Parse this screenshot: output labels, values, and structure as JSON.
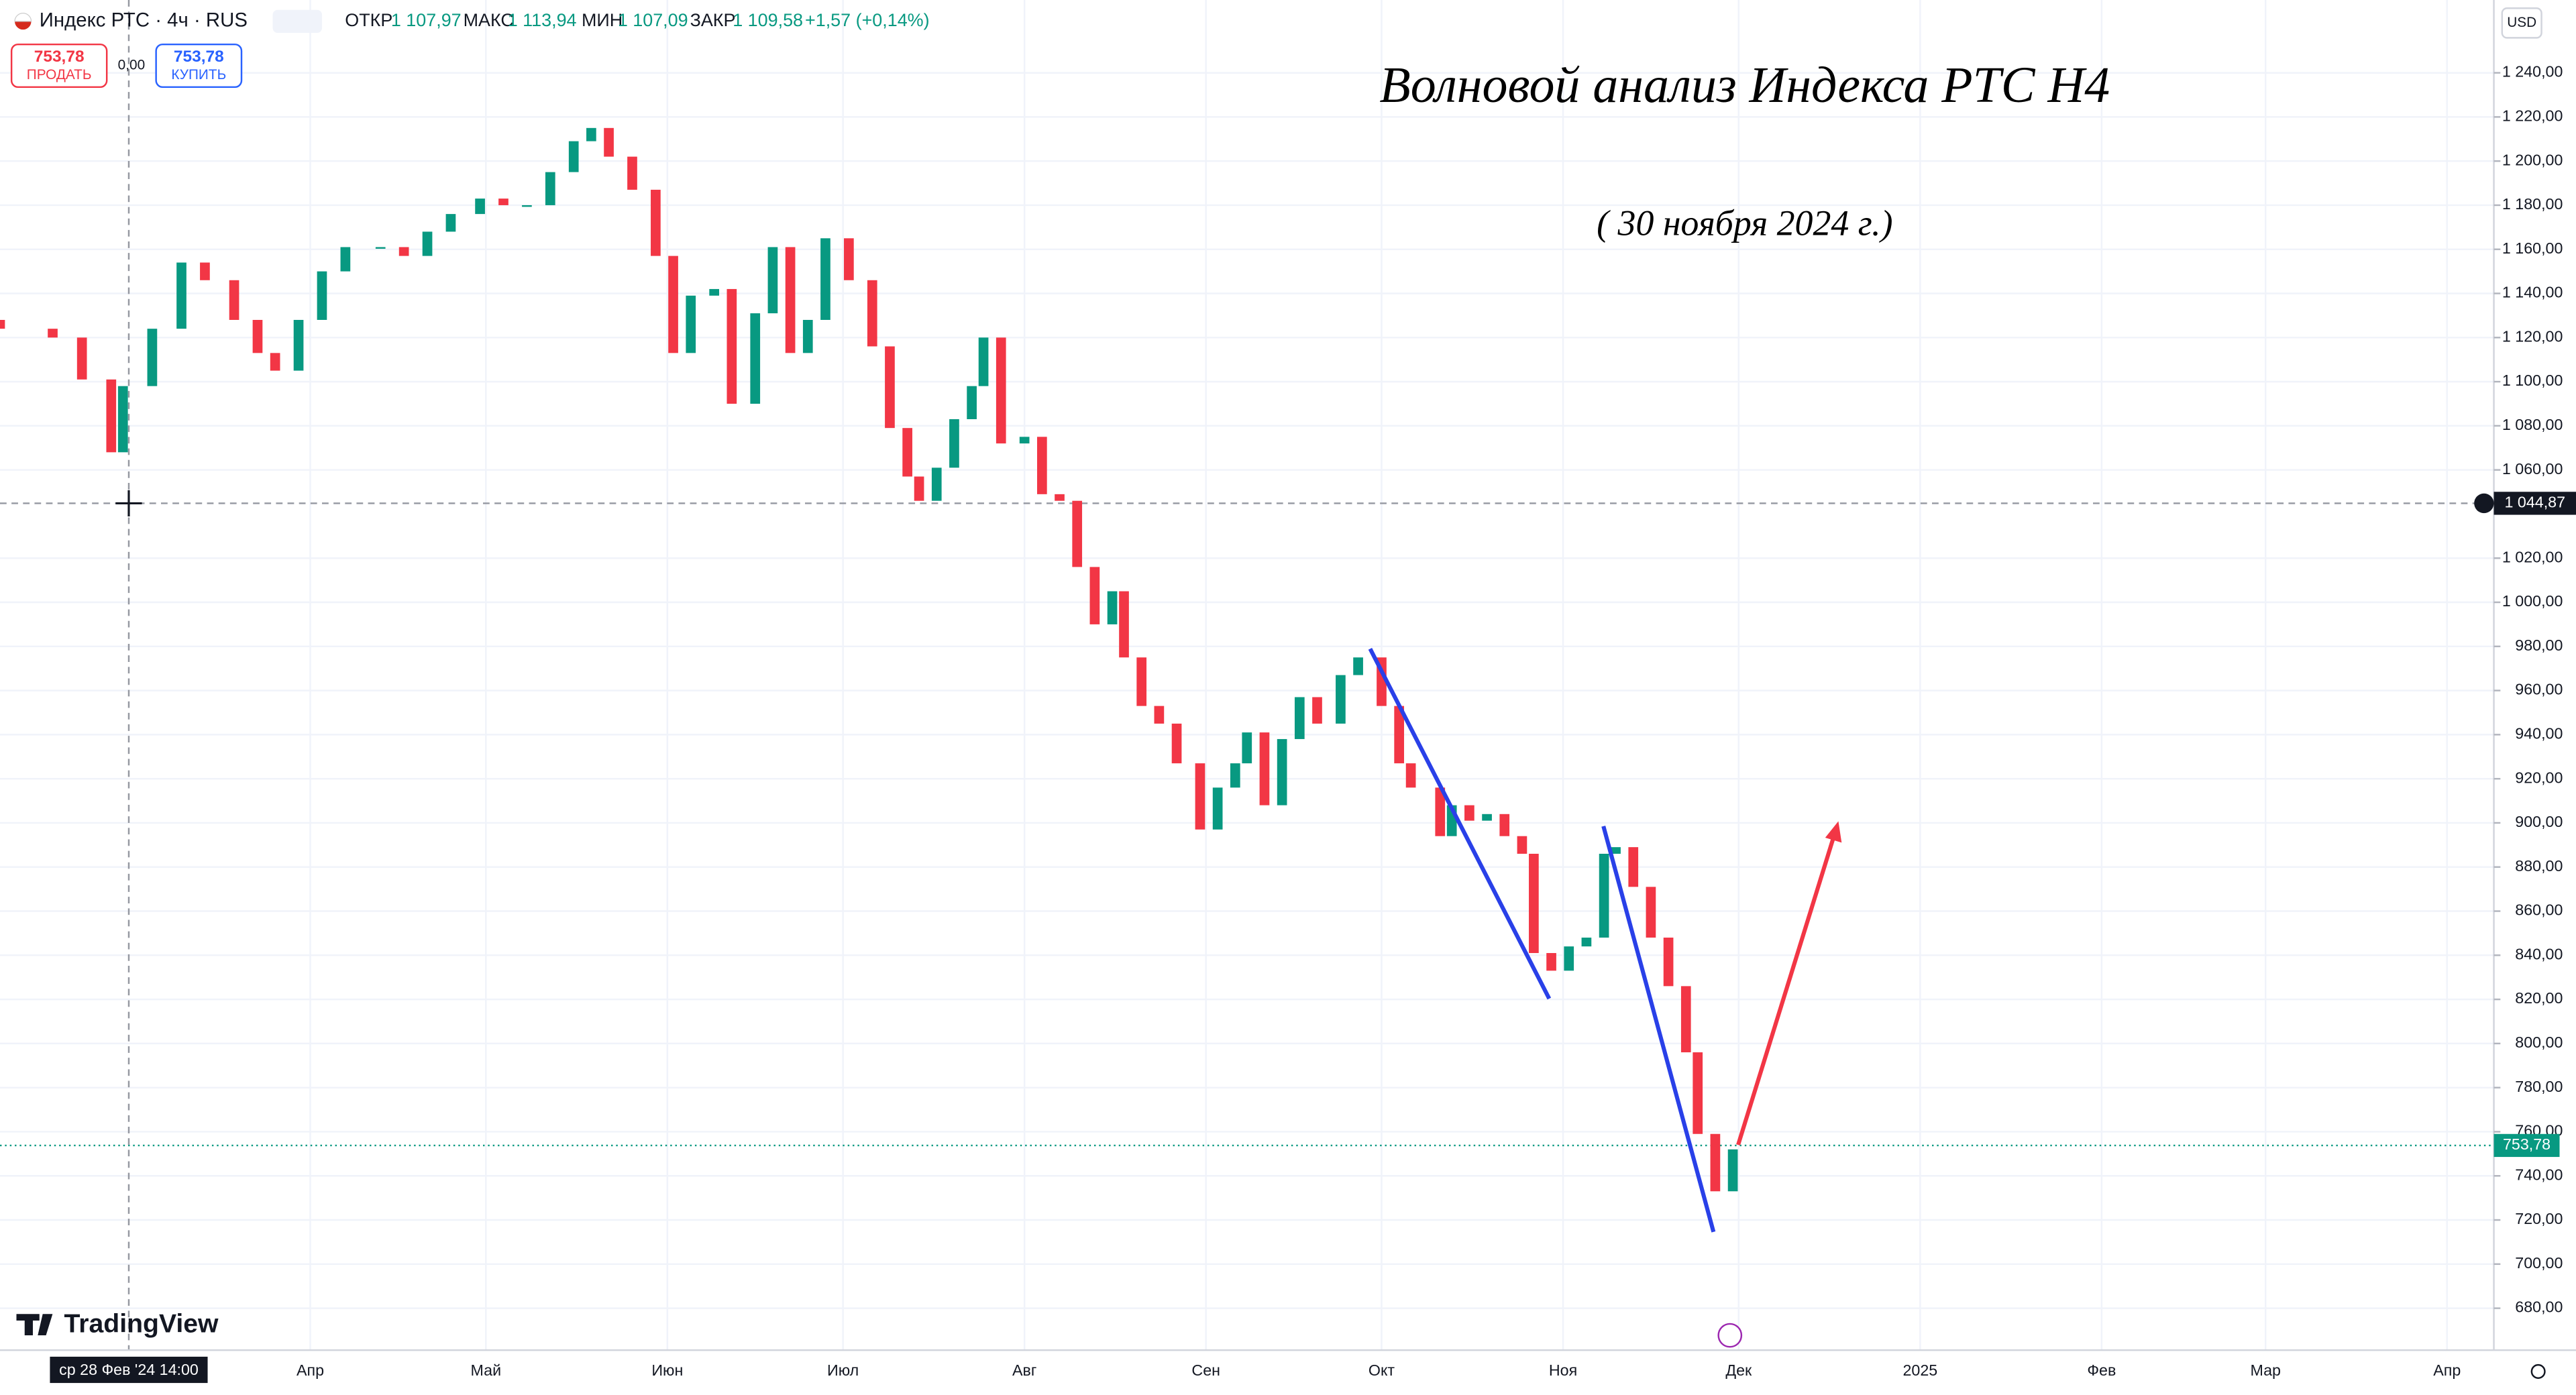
{
  "header": {
    "symbol": "Индекс РТС · 4ч · RUS",
    "fields": [
      {
        "label": "ОТКР",
        "value": "1 107,97"
      },
      {
        "label": "МАКС",
        "value": "1 113,94"
      },
      {
        "label": "МИН",
        "value": "1 107,09"
      },
      {
        "label": "ЗАКР",
        "value": "1 109,58"
      }
    ],
    "change": "+1,57 (+0,14%)"
  },
  "trade": {
    "sell_price": "753,78",
    "sell_label": "ПРОДАТЬ",
    "spread": "0,00",
    "buy_price": "753,78",
    "buy_label": "КУПИТЬ"
  },
  "currency": "USD",
  "logo": "TradingView",
  "chart_data": {
    "type": "candlestick",
    "title": "Волновой анализ Индекса РТС H4",
    "subtitle": "( 30 ноября 2024 г.)",
    "up_color": "#089981",
    "down_color": "#f23645",
    "x": [
      38,
      47,
      52,
      57,
      59,
      64,
      69,
      73,
      78,
      82,
      85,
      89,
      93,
      97,
      103,
      107,
      111,
      115,
      120,
      124,
      128,
      132,
      136,
      139,
      142,
      146,
      150,
      153,
      156,
      160,
      163,
      167,
      170,
      173,
      176,
      179,
      183,
      187,
      190,
      193,
      195,
      198,
      201,
      204,
      206,
      209,
      213,
      216,
      219,
      222,
      225,
      228,
      230,
      233,
      236,
      239,
      243,
      246,
      249,
      251,
      254,
      257,
      260,
      263,
      267,
      270,
      274,
      277,
      279,
      284,
      286,
      289,
      292,
      295,
      298,
      300,
      303,
      306,
      309,
      312,
      314,
      317,
      320,
      323,
      326,
      328,
      331,
      334
    ],
    "open": [
      1128,
      1124,
      1120,
      1101,
      1068,
      1098,
      1124,
      1154,
      1146,
      1128,
      1113,
      1105,
      1128,
      1150,
      1161,
      1161,
      1157,
      1168,
      1176,
      1183,
      1180,
      1180,
      1195,
      1209,
      1215,
      1202,
      1187,
      1157,
      1113,
      1139,
      1142,
      1090,
      1131,
      1161,
      1113,
      1128,
      1165,
      1146,
      1116,
      1079,
      1057,
      1046,
      1061,
      1083,
      1098,
      1120,
      1072,
      1075,
      1049,
      1046,
      1016,
      990,
      1005,
      975,
      953,
      945,
      927,
      897,
      916,
      927,
      941,
      908,
      938,
      957,
      945,
      967,
      975,
      953,
      927,
      916,
      894,
      908,
      901,
      904,
      894,
      886,
      841,
      833,
      844,
      848,
      886,
      889,
      871,
      848,
      826,
      796,
      759,
      733
    ],
    "close": [
      1124,
      1120,
      1101,
      1068,
      1098,
      1124,
      1154,
      1146,
      1128,
      1113,
      1105,
      1128,
      1150,
      1161,
      1161,
      1157,
      1168,
      1176,
      1183,
      1180,
      1180,
      1195,
      1209,
      1215,
      1202,
      1187,
      1157,
      1113,
      1139,
      1142,
      1090,
      1131,
      1161,
      1113,
      1128,
      1165,
      1146,
      1116,
      1079,
      1057,
      1046,
      1061,
      1083,
      1098,
      1120,
      1072,
      1075,
      1049,
      1046,
      1016,
      990,
      1005,
      975,
      953,
      945,
      927,
      897,
      916,
      927,
      941,
      908,
      938,
      957,
      945,
      967,
      975,
      953,
      927,
      916,
      894,
      908,
      901,
      904,
      894,
      886,
      841,
      833,
      844,
      848,
      886,
      889,
      871,
      848,
      826,
      796,
      759,
      733,
      752
    ],
    "xlim": [
      38,
      464
    ],
    "ylim": [
      661,
      1273
    ],
    "xticks": [
      {
        "value": 91,
        "label": "Апр"
      },
      {
        "value": 121,
        "label": "Май"
      },
      {
        "value": 152,
        "label": "Июн"
      },
      {
        "value": 182,
        "label": "Июл"
      },
      {
        "value": 213,
        "label": "Авг"
      },
      {
        "value": 244,
        "label": "Сен"
      },
      {
        "value": 274,
        "label": "Окт"
      },
      {
        "value": 305,
        "label": "Ноя"
      },
      {
        "value": 335,
        "label": "Дек"
      },
      {
        "value": 366,
        "label": "2025"
      },
      {
        "value": 397,
        "label": "Фев"
      },
      {
        "value": 425,
        "label": "Мар"
      },
      {
        "value": 456,
        "label": "Апр"
      }
    ],
    "yticks": [
      {
        "value": 680,
        "label": "680,00"
      },
      {
        "value": 700,
        "label": "700,00"
      },
      {
        "value": 720,
        "label": "720,00"
      },
      {
        "value": 740,
        "label": "740,00"
      },
      {
        "value": 760,
        "label": "760,00"
      },
      {
        "value": 780,
        "label": "780,00"
      },
      {
        "value": 800,
        "label": "800,00"
      },
      {
        "value": 820,
        "label": "820,00"
      },
      {
        "value": 840,
        "label": "840,00"
      },
      {
        "value": 860,
        "label": "860,00"
      },
      {
        "value": 880,
        "label": "880,00"
      },
      {
        "value": 900,
        "label": "900,00"
      },
      {
        "value": 920,
        "label": "920,00"
      },
      {
        "value": 940,
        "label": "940,00"
      },
      {
        "value": 960,
        "label": "960,00"
      },
      {
        "value": 980,
        "label": "980,00"
      },
      {
        "value": 1000,
        "label": "1 000,00"
      },
      {
        "value": 1020,
        "label": "1 020,00"
      },
      {
        "value": 1060,
        "label": "1 060,00"
      },
      {
        "value": 1080,
        "label": "1 080,00"
      },
      {
        "value": 1100,
        "label": "1 100,00"
      },
      {
        "value": 1120,
        "label": "1 120,00"
      },
      {
        "value": 1140,
        "label": "1 140,00"
      },
      {
        "value": 1160,
        "label": "1 160,00"
      },
      {
        "value": 1180,
        "label": "1 180,00"
      },
      {
        "value": 1200,
        "label": "1 200,00"
      },
      {
        "value": 1220,
        "label": "1 220,00"
      },
      {
        "value": 1240,
        "label": "1 240,00"
      }
    ],
    "grid": true,
    "last_price": {
      "value": 753.78,
      "label": "753,78"
    },
    "crosshair": {
      "x": 60,
      "x_label": "ср 28 Фев '24  14:00",
      "price": 1044.87,
      "price_label": "1 044,87"
    }
  }
}
